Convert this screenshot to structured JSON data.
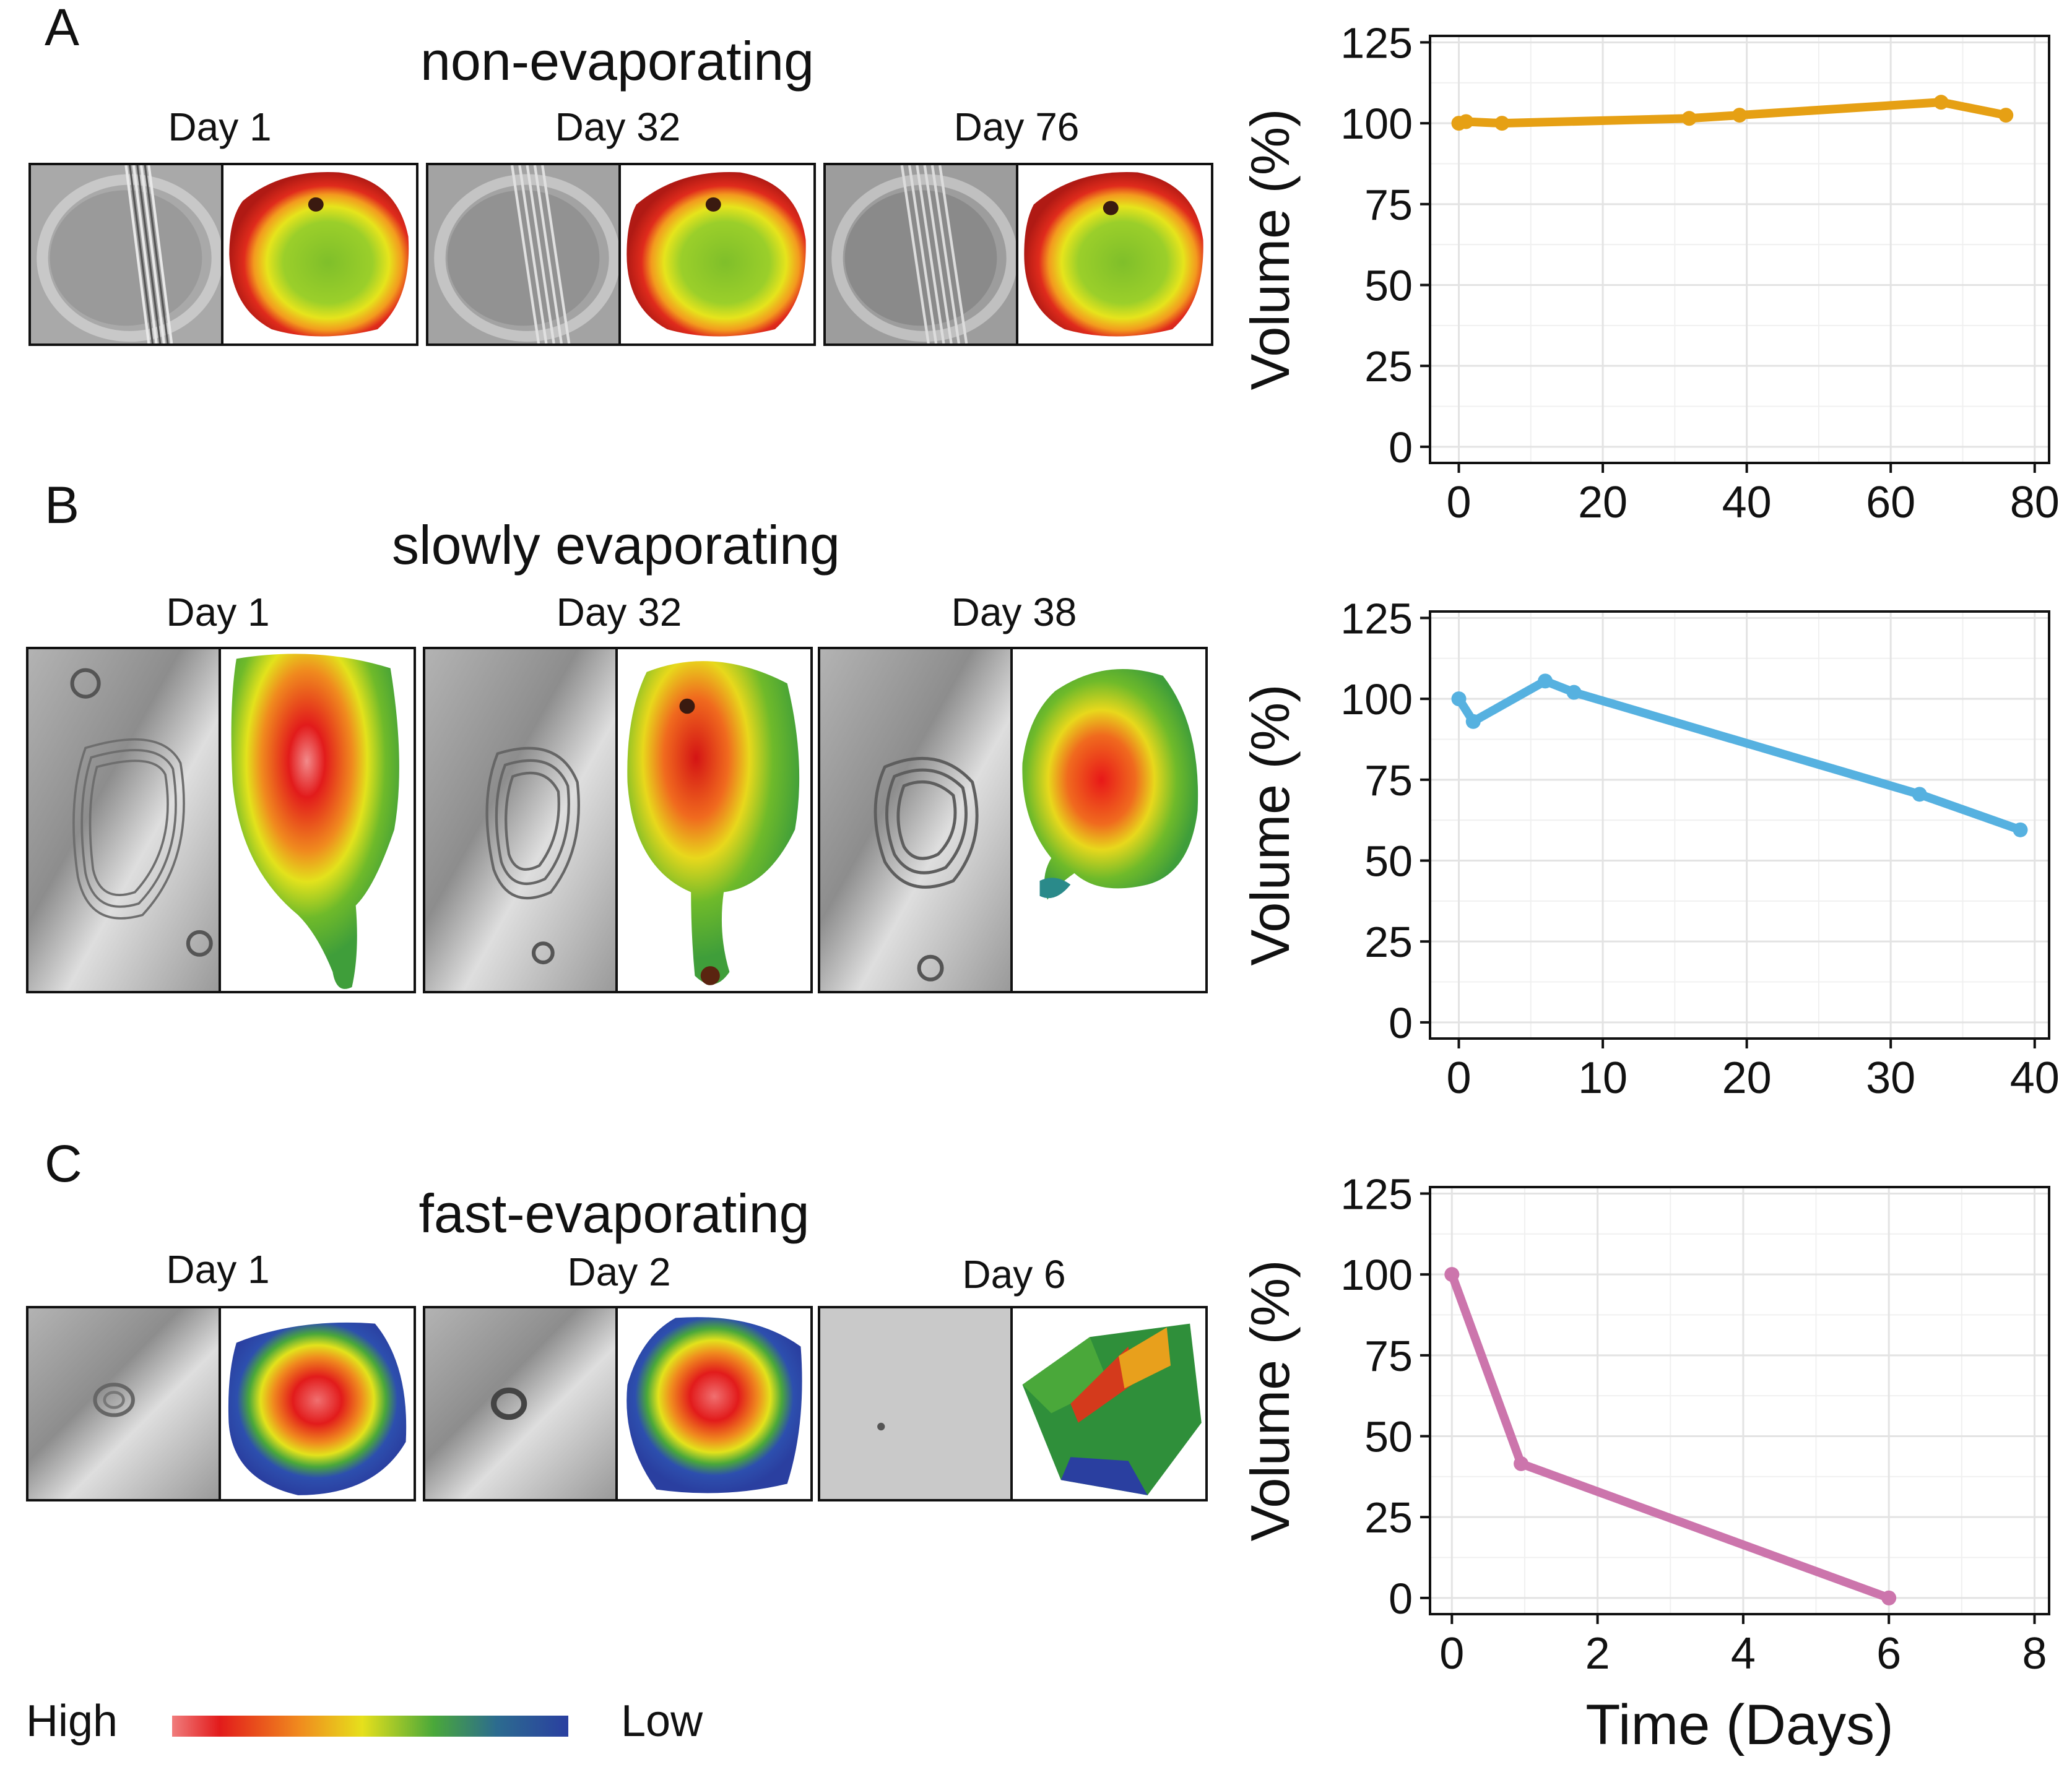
{
  "panels": [
    {
      "letter": "A",
      "title": "non-evaporating",
      "days": [
        "Day 1",
        "Day 32",
        "Day 76"
      ]
    },
    {
      "letter": "B",
      "title": "slowly evaporating",
      "days": [
        "Day 1",
        "Day 32",
        "Day 38"
      ]
    },
    {
      "letter": "C",
      "title": "fast-evaporating",
      "days": [
        "Day 1",
        "Day 2",
        "Day 6"
      ]
    }
  ],
  "legend": {
    "high": "High",
    "low": "Low"
  },
  "colors": {
    "orange": "#e6a014",
    "blue": "#56b1e0",
    "pink": "#cc75ac"
  },
  "chart_data": [
    {
      "type": "line",
      "title": "",
      "ylabel": "Volume (%)",
      "xlabel": "",
      "xlim": [
        -4,
        82
      ],
      "ylim": [
        -5,
        127
      ],
      "xticks": [
        0,
        20,
        40,
        60,
        80
      ],
      "yticks": [
        0,
        25,
        50,
        75,
        100,
        125
      ],
      "series": [
        {
          "name": "non-evaporating",
          "color": "#e6a014",
          "x": [
            0,
            1,
            6,
            32,
            39,
            67,
            76
          ],
          "y": [
            100,
            100.5,
            100,
            101.5,
            102.5,
            106.5,
            102.5
          ]
        }
      ]
    },
    {
      "type": "line",
      "title": "",
      "ylabel": "Volume (%)",
      "xlabel": "",
      "xlim": [
        -2,
        41
      ],
      "ylim": [
        -5,
        127
      ],
      "xticks": [
        0,
        10,
        20,
        30,
        40
      ],
      "yticks": [
        0,
        25,
        50,
        75,
        100,
        125
      ],
      "series": [
        {
          "name": "slowly evaporating",
          "color": "#56b1e0",
          "x": [
            0,
            1,
            6,
            8,
            32,
            39
          ],
          "y": [
            100,
            93,
            105.5,
            102,
            70.5,
            59.5
          ]
        }
      ]
    },
    {
      "type": "line",
      "title": "",
      "ylabel": "Volume (%)",
      "xlabel": "Time (Days)",
      "xlim": [
        -0.3,
        8.2
      ],
      "ylim": [
        -5,
        127
      ],
      "xticks": [
        0,
        2,
        4,
        6,
        8
      ],
      "yticks": [
        0,
        25,
        50,
        75,
        100,
        125
      ],
      "series": [
        {
          "name": "fast-evaporating",
          "color": "#cc75ac",
          "x": [
            0,
            0.95,
            6
          ],
          "y": [
            100,
            41.5,
            0
          ]
        }
      ]
    }
  ]
}
